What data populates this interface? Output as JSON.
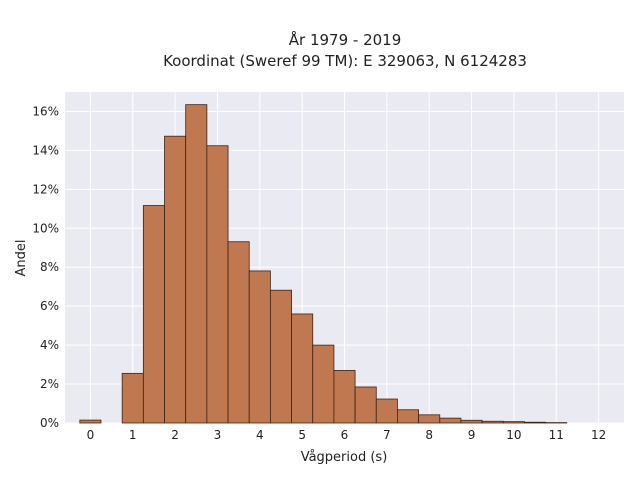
{
  "chart_data": {
    "type": "bar",
    "title_lines": [
      "År 1979 - 2019",
      "Koordinat (Sweref 99 TM): E 329063, N 6124283"
    ],
    "xlabel": "Vågperiod (s)",
    "ylabel": "Andel",
    "xlim": [
      -0.6,
      12.6
    ],
    "ylim": [
      0,
      0.17
    ],
    "grid": true,
    "bin_width": 0.5,
    "x_ticks": [
      0,
      1,
      2,
      3,
      4,
      5,
      6,
      7,
      8,
      9,
      10,
      11,
      12
    ],
    "x_tick_labels": [
      "0",
      "1",
      "2",
      "3",
      "4",
      "5",
      "6",
      "7",
      "8",
      "9",
      "10",
      "11",
      "12"
    ],
    "y_ticks": [
      0,
      0.02,
      0.04,
      0.06,
      0.08,
      0.1,
      0.12,
      0.14,
      0.16
    ],
    "y_tick_labels": [
      "0%",
      "2%",
      "4%",
      "6%",
      "8%",
      "10%",
      "12%",
      "14%",
      "16%"
    ],
    "bins": [
      {
        "x0": -0.25,
        "x1": 0.25,
        "value": 0.0015
      },
      {
        "x0": 0.25,
        "x1": 0.75,
        "value": 0.0
      },
      {
        "x0": 0.75,
        "x1": 1.25,
        "value": 0.0255
      },
      {
        "x0": 1.25,
        "x1": 1.75,
        "value": 0.1117
      },
      {
        "x0": 1.75,
        "x1": 2.25,
        "value": 0.1473
      },
      {
        "x0": 2.25,
        "x1": 2.75,
        "value": 0.1635
      },
      {
        "x0": 2.75,
        "x1": 3.25,
        "value": 0.1424
      },
      {
        "x0": 3.25,
        "x1": 3.75,
        "value": 0.0931
      },
      {
        "x0": 3.75,
        "x1": 4.25,
        "value": 0.0781
      },
      {
        "x0": 4.25,
        "x1": 4.75,
        "value": 0.0682
      },
      {
        "x0": 4.75,
        "x1": 5.25,
        "value": 0.056
      },
      {
        "x0": 5.25,
        "x1": 5.75,
        "value": 0.04
      },
      {
        "x0": 5.75,
        "x1": 6.25,
        "value": 0.027
      },
      {
        "x0": 6.25,
        "x1": 6.75,
        "value": 0.0185
      },
      {
        "x0": 6.75,
        "x1": 7.25,
        "value": 0.0123
      },
      {
        "x0": 7.25,
        "x1": 7.75,
        "value": 0.0068
      },
      {
        "x0": 7.75,
        "x1": 8.25,
        "value": 0.0042
      },
      {
        "x0": 8.25,
        "x1": 8.75,
        "value": 0.0025
      },
      {
        "x0": 8.75,
        "x1": 9.25,
        "value": 0.0014
      },
      {
        "x0": 9.25,
        "x1": 9.75,
        "value": 0.0009
      },
      {
        "x0": 9.75,
        "x1": 10.25,
        "value": 0.0007
      },
      {
        "x0": 10.25,
        "x1": 10.75,
        "value": 0.0004
      },
      {
        "x0": 10.75,
        "x1": 11.25,
        "value": 0.0002
      }
    ],
    "colors": {
      "bar_fill": "#bf7850",
      "bar_edge": "#3b2416",
      "plot_bg": "#eaeaf2",
      "grid": "#ffffff"
    }
  }
}
